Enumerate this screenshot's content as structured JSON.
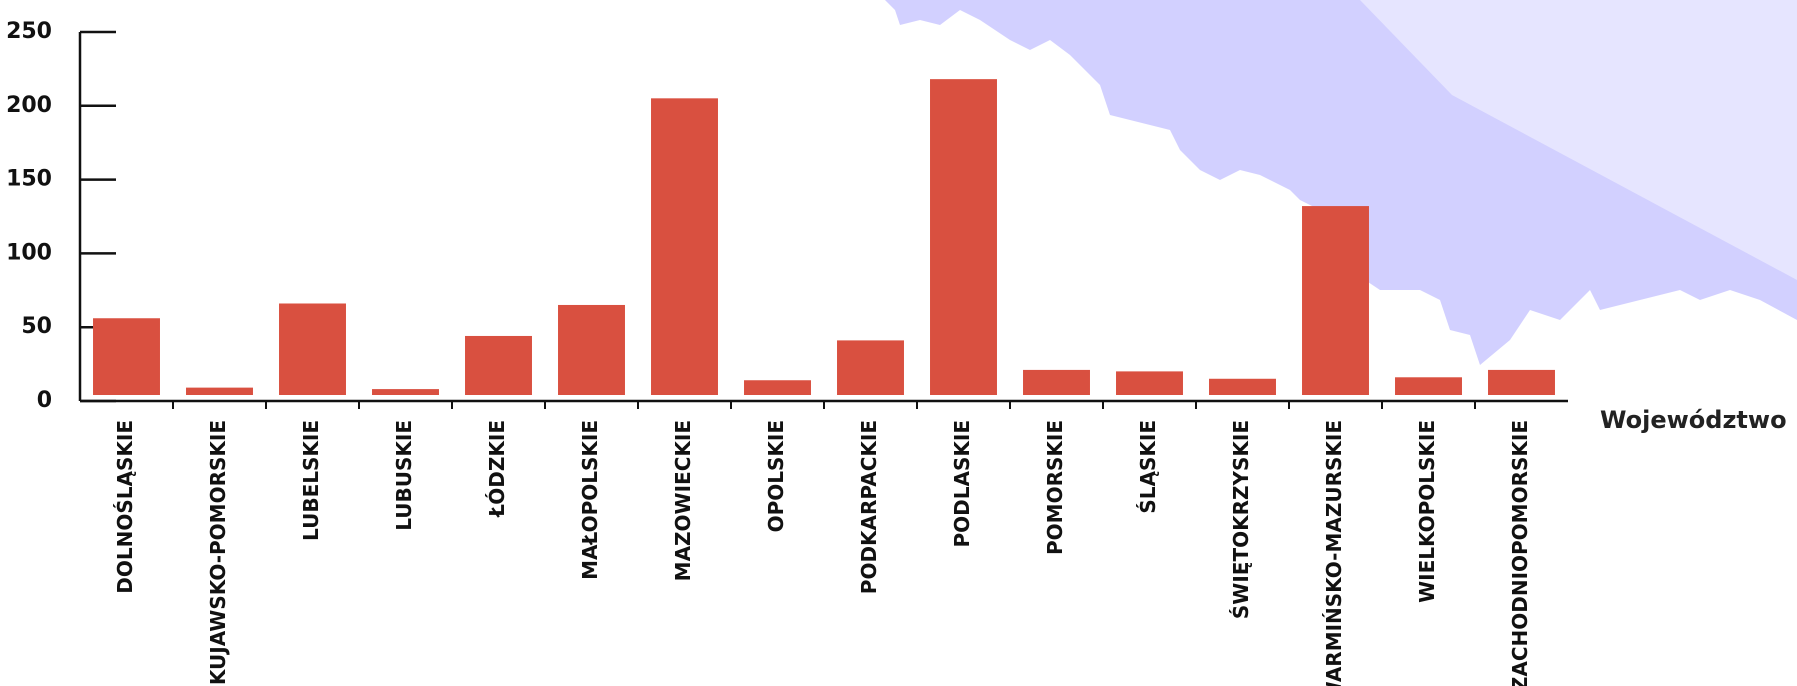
{
  "chart_data": {
    "type": "bar",
    "x_label": "Województwo",
    "categories": [
      "DOLNOŚLĄSKIE",
      "KUJAWSKO-POMORSKIE",
      "LUBELSKIE",
      "LUBUSKIE",
      "ŁÓDZKIE",
      "MAŁOPOLSKIE",
      "MAZOWIECKIE",
      "OPOLSKIE",
      "PODKARPACKIE",
      "PODLASKIE",
      "POMORSKIE",
      "ŚLĄSKIE",
      "ŚWIĘTOKRZYSKIE",
      "WARMIŃSKO-MAZURSKIE",
      "WIELKOPOLSKIE",
      "ZACHODNIOPOMORSKIE"
    ],
    "values": [
      52,
      5,
      62,
      4,
      40,
      61,
      201,
      10,
      37,
      214,
      17,
      16,
      11,
      128,
      12,
      17
    ],
    "color": "#d95040",
    "ylim": [
      0,
      250
    ],
    "yticks": [
      0,
      50,
      100,
      150,
      200,
      250
    ]
  }
}
